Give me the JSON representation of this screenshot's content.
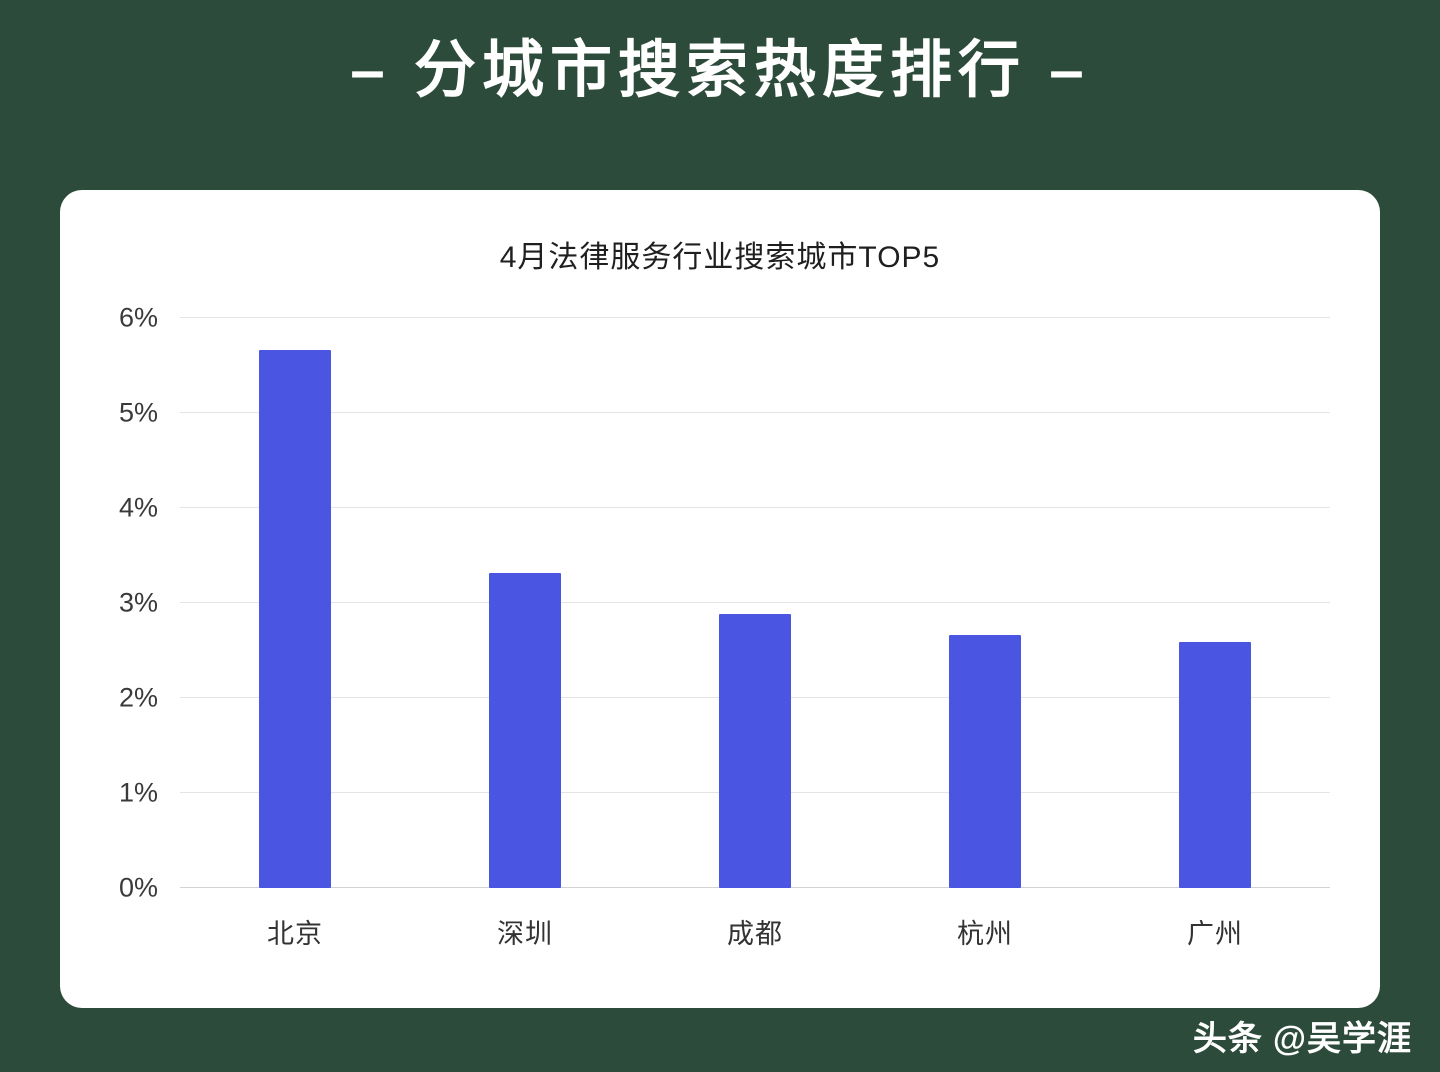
{
  "page": {
    "title": "– 分城市搜索热度排行 –",
    "background_color": "#2d4b3b",
    "watermark": {
      "brand": "头条",
      "handle": "@吴学涯"
    }
  },
  "chart_data": {
    "type": "bar",
    "title": "4月法律服务行业搜索城市TOP5",
    "categories": [
      "北京",
      "深圳",
      "成都",
      "杭州",
      "广州"
    ],
    "values": [
      5.67,
      3.32,
      2.89,
      2.67,
      2.59
    ],
    "unit": "%",
    "xlabel": "",
    "ylabel": "",
    "ylim": [
      0,
      6
    ],
    "ytick_step": 1,
    "ytick_labels": [
      "0%",
      "1%",
      "2%",
      "3%",
      "4%",
      "5%",
      "6%"
    ],
    "bar_color": "#4a56e2",
    "grid": true,
    "legend": "none"
  }
}
